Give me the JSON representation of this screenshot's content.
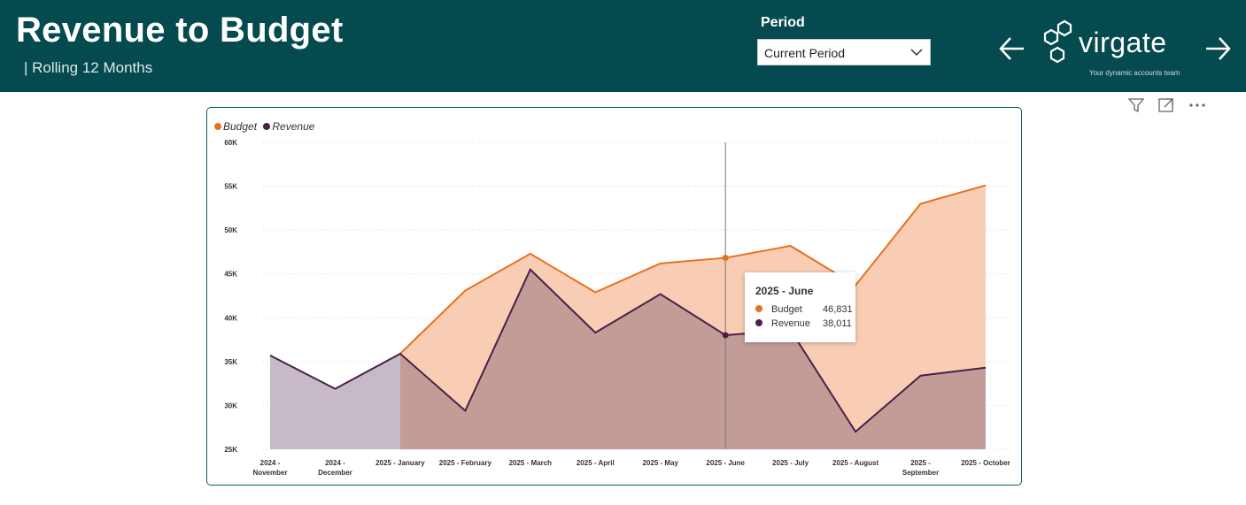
{
  "header": {
    "title": "Revenue to Budget",
    "subtitle": "| Rolling 12 Months",
    "period_label": "Period",
    "period_value": "Current Period",
    "logo_text": "virgate",
    "logo_tagline": "Your dynamic accounts team",
    "nav_left_icon": "arrow-left-icon",
    "nav_right_icon": "arrow-right-icon"
  },
  "visual_header_icons": [
    "filter-icon",
    "focus-mode-icon",
    "more-options-icon"
  ],
  "colors": {
    "header_bg": "#054a4f",
    "budget": "#e8711e",
    "budget_fill": "#f8cdb3",
    "revenue": "#4a2048",
    "revenue_fill_overlap": "#c49c97",
    "revenue_fill_base": "#c6b9c8"
  },
  "tooltip": {
    "title": "2025 - June",
    "rows": [
      {
        "name": "Budget",
        "value": "46,831"
      },
      {
        "name": "Revenue",
        "value": "38,011"
      }
    ]
  },
  "chart_data": {
    "type": "area",
    "categories": [
      [
        "2024 -",
        "November"
      ],
      [
        "2024 -",
        "December"
      ],
      [
        "2025 - January"
      ],
      [
        "2025 - February"
      ],
      [
        "2025 - March"
      ],
      [
        "2025 - April"
      ],
      [
        "2025 - May"
      ],
      [
        "2025 - June"
      ],
      [
        "2025 - July"
      ],
      [
        "2025 - August"
      ],
      [
        "2025 -",
        "September"
      ],
      [
        "2025 - October"
      ]
    ],
    "series": [
      {
        "name": "Budget",
        "values": [
          null,
          null,
          35900,
          43100,
          47300,
          42900,
          46200,
          46831,
          48200,
          43700,
          53000,
          55100
        ]
      },
      {
        "name": "Revenue",
        "values": [
          35700,
          31900,
          35900,
          29400,
          45500,
          38300,
          42700,
          38011,
          38600,
          27000,
          33400,
          34300
        ]
      }
    ],
    "ylim": [
      25000,
      60000
    ],
    "yticks": [
      "25K",
      "30K",
      "35K",
      "40K",
      "45K",
      "50K",
      "55K",
      "60K"
    ],
    "ytick_values": [
      25000,
      30000,
      35000,
      40000,
      45000,
      50000,
      55000,
      60000
    ],
    "legend": "top-left",
    "grid": true,
    "hover_index": 7
  }
}
